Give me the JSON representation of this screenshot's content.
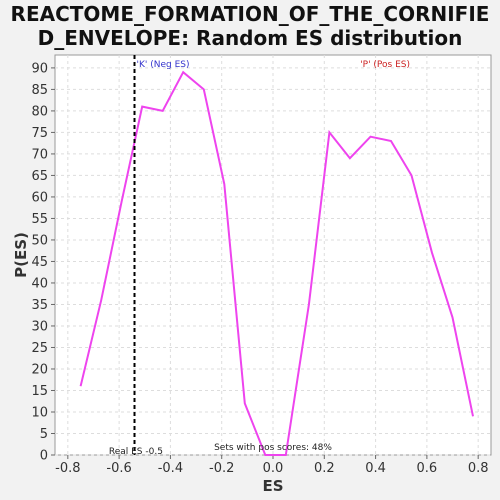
{
  "chart_data": {
    "type": "line",
    "title_line1": "REACTOME_FORMATION_OF_THE_CORNIFIE",
    "title_line2": "D_ENVELOPE: Random ES distribution",
    "xlabel": "ES",
    "ylabel": "P(ES)",
    "xlim": [
      -0.85,
      0.85
    ],
    "ylim": [
      0,
      93
    ],
    "xticks": [
      -0.8,
      -0.6,
      -0.4,
      -0.2,
      0.0,
      0.2,
      0.4,
      0.6,
      0.8
    ],
    "xtick_labels": [
      "-0.8",
      "-0.6",
      "-0.4",
      "-0.2",
      "0.0",
      "0.2",
      "0.4",
      "0.6",
      "0.8"
    ],
    "yticks": [
      0,
      5,
      10,
      15,
      20,
      25,
      30,
      35,
      40,
      45,
      50,
      55,
      60,
      65,
      70,
      75,
      80,
      85,
      90
    ],
    "grid": true,
    "series": [
      {
        "color": "#ee44ee",
        "x": [
          -0.75,
          -0.67,
          -0.59,
          -0.51,
          -0.43,
          -0.35,
          -0.27,
          -0.19,
          -0.11,
          -0.03,
          0.05,
          0.14,
          0.22,
          0.3,
          0.38,
          0.46,
          0.54,
          0.62,
          0.7,
          0.78
        ],
        "y": [
          16,
          36,
          59,
          81,
          80,
          89,
          85,
          63,
          12,
          0,
          0,
          35,
          75,
          69,
          74,
          73,
          65,
          47,
          32,
          9
        ]
      }
    ],
    "real_es": -0.54,
    "annotations": {
      "neg_label": "'K' (Neg ES)",
      "pos_label": "'P' (Pos ES)",
      "real_es_label": "Real ES -0.5",
      "pos_fraction_label": "Sets with pos scores: 48%"
    },
    "colors": {
      "curve": "#ee44ee",
      "neg": "#3333cc",
      "pos": "#cc2222",
      "grid": "#dddddd"
    }
  }
}
